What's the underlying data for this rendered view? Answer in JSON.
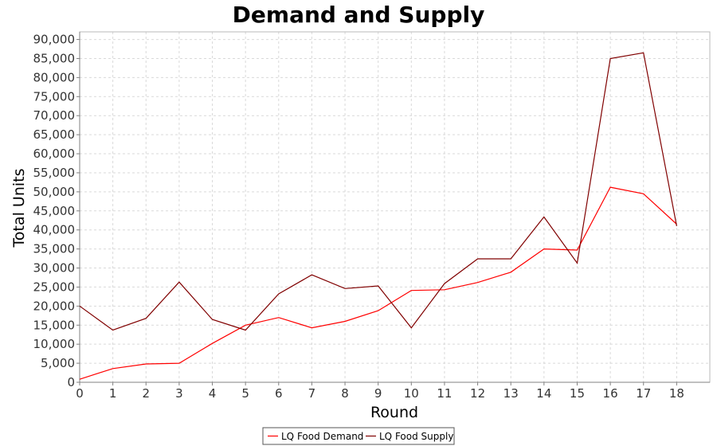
{
  "chart_data": {
    "type": "line",
    "title": "Demand and Supply",
    "xlabel": "Round",
    "ylabel": "Total Units",
    "x": [
      0,
      1,
      2,
      3,
      4,
      5,
      6,
      7,
      8,
      9,
      10,
      11,
      12,
      13,
      14,
      15,
      16,
      17,
      18
    ],
    "xlim": [
      0,
      19
    ],
    "ylim": [
      0,
      92000
    ],
    "x_ticks": [
      0,
      1,
      2,
      3,
      4,
      5,
      6,
      7,
      8,
      9,
      10,
      11,
      12,
      13,
      14,
      15,
      16,
      17,
      18
    ],
    "y_ticks": [
      0,
      5000,
      10000,
      15000,
      20000,
      25000,
      30000,
      35000,
      40000,
      45000,
      50000,
      55000,
      60000,
      65000,
      70000,
      75000,
      80000,
      85000,
      90000
    ],
    "y_tick_labels": [
      "0",
      "5,000",
      "10,000",
      "15,000",
      "20,000",
      "25,000",
      "30,000",
      "35,000",
      "40,000",
      "45,000",
      "50,000",
      "55,000",
      "60,000",
      "65,000",
      "70,000",
      "75,000",
      "80,000",
      "85,000",
      "90,000"
    ],
    "grid": true,
    "legend_position": "bottom",
    "series": [
      {
        "name": "LQ Food Demand",
        "color": "#ff0000",
        "values": [
          800,
          3600,
          4800,
          5000,
          10200,
          15000,
          17000,
          14300,
          16000,
          18800,
          24100,
          24300,
          26200,
          28900,
          35000,
          34700,
          51200,
          49500,
          41500
        ]
      },
      {
        "name": "LQ Food Supply",
        "color": "#800000",
        "values": [
          20000,
          13700,
          16800,
          26300,
          16500,
          13700,
          23200,
          28200,
          24600,
          25300,
          14300,
          25900,
          32400,
          32400,
          43400,
          31300,
          85000,
          86500,
          41000
        ]
      }
    ]
  }
}
